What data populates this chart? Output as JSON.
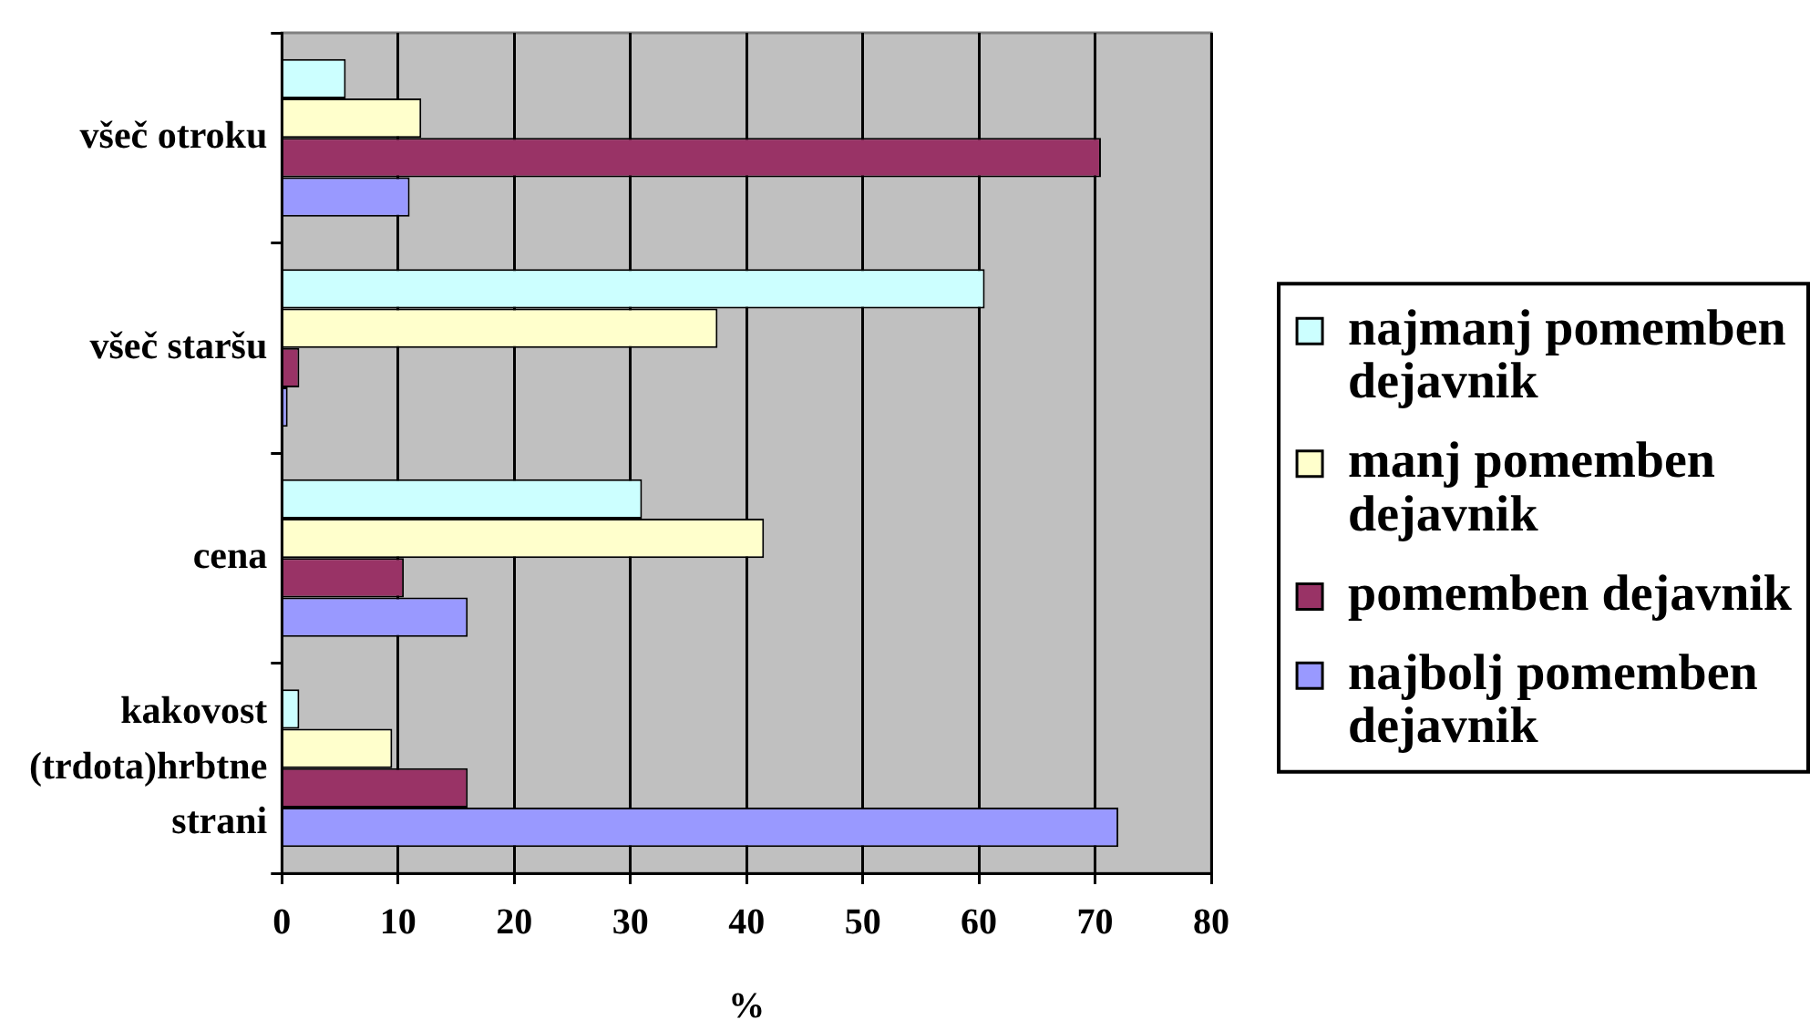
{
  "chart_data": {
    "type": "bar",
    "orientation": "horizontal",
    "categories": [
      "všeč otroku",
      "všeč staršu",
      "cena",
      "kakovost (trdota)hrbtne strani"
    ],
    "series": [
      {
        "name": "najmanj pomemben dejavnik",
        "color": "#ccffff",
        "values": [
          5.5,
          60.5,
          31,
          1.5
        ]
      },
      {
        "name": "manj pomemben dejavnik",
        "color": "#ffffcc",
        "values": [
          12,
          37.5,
          41.5,
          9.5
        ]
      },
      {
        "name": "pomemben dejavnik",
        "color": "#993366",
        "values": [
          70.5,
          1.5,
          10.5,
          16
        ]
      },
      {
        "name": "najbolj pomemben dejavnik",
        "color": "#9999ff",
        "values": [
          11,
          0.5,
          16,
          72
        ]
      }
    ],
    "xlabel": "%",
    "xlim": [
      0,
      80
    ],
    "xticks": [
      0,
      10,
      20,
      30,
      40,
      50,
      60,
      70,
      80
    ],
    "grid": "x",
    "legend": "right"
  }
}
